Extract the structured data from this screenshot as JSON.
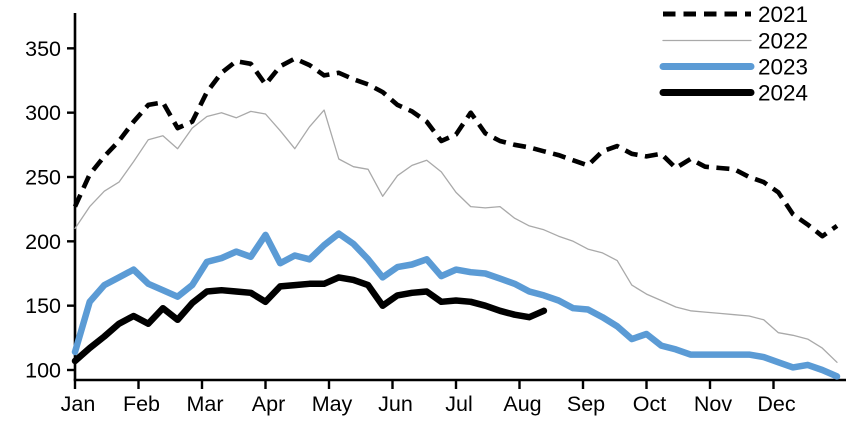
{
  "chart_data": {
    "type": "line",
    "title": "",
    "xlabel": "",
    "ylabel": "",
    "x_unit": "weeks (Jan through Dec)",
    "x_tick_labels": [
      "Jan",
      "Feb",
      "Mar",
      "Apr",
      "May",
      "Jun",
      "Jul",
      "Aug",
      "Sep",
      "Oct",
      "Nov",
      "Dec"
    ],
    "y_tick_labels": [
      "100",
      "150",
      "200",
      "250",
      "300",
      "350"
    ],
    "y_ticks": [
      100,
      150,
      200,
      250,
      300,
      350
    ],
    "ylim": [
      92,
      365
    ],
    "grid": false,
    "legend": {
      "position": "top-right",
      "entries": [
        "2021",
        "2022",
        "2023",
        "2024"
      ]
    },
    "series": [
      {
        "name": "2021",
        "color": "#000000",
        "line_style": "dashed",
        "line_width": 4.6,
        "values": [
          227,
          252,
          266,
          278,
          293,
          306,
          308,
          288,
          293,
          316,
          331,
          340,
          338,
          322,
          336,
          342,
          337,
          329,
          331,
          326,
          322,
          316,
          306,
          301,
          293,
          278,
          283,
          300,
          284,
          278,
          275,
          273,
          270,
          267,
          263,
          259,
          270,
          274,
          268,
          266,
          268,
          257,
          264,
          258,
          257,
          256,
          250,
          246,
          238,
          221,
          213,
          204,
          212
        ]
      },
      {
        "name": "2022",
        "color": "#a9a9a9",
        "line_style": "solid",
        "line_width": 1.3,
        "values": [
          210,
          227,
          239,
          246,
          262,
          279,
          282,
          272,
          288,
          297,
          300,
          296,
          301,
          299,
          286,
          272,
          289,
          302,
          264,
          258,
          256,
          235,
          251,
          259,
          263,
          254,
          238,
          227,
          226,
          227,
          218,
          212,
          209,
          204,
          200,
          194,
          191,
          185,
          166,
          159,
          154,
          149,
          146,
          145,
          144,
          143,
          142,
          139,
          129,
          127,
          124,
          117,
          106
        ]
      },
      {
        "name": "2023",
        "color": "#5b9bd5",
        "line_style": "solid",
        "line_width": 6.5,
        "values": [
          114,
          153,
          166,
          172,
          178,
          167,
          162,
          157,
          166,
          184,
          187,
          192,
          188,
          205,
          183,
          189,
          186,
          197,
          206,
          198,
          186,
          172,
          180,
          182,
          186,
          173,
          178,
          176,
          175,
          171,
          167,
          161,
          158,
          154,
          148,
          147,
          141,
          134,
          124,
          128,
          119,
          116,
          112,
          112,
          112,
          112,
          112,
          110,
          106,
          102,
          104,
          100,
          95
        ]
      },
      {
        "name": "2024",
        "color": "#000000",
        "line_style": "solid",
        "line_width": 6.5,
        "values": [
          107,
          117,
          126,
          136,
          142,
          136,
          148,
          139,
          152,
          161,
          162,
          161,
          160,
          153,
          165,
          166,
          167,
          167,
          172,
          170,
          166,
          150,
          158,
          160,
          161,
          153,
          154,
          153,
          150,
          146,
          143,
          141,
          146
        ]
      }
    ]
  }
}
